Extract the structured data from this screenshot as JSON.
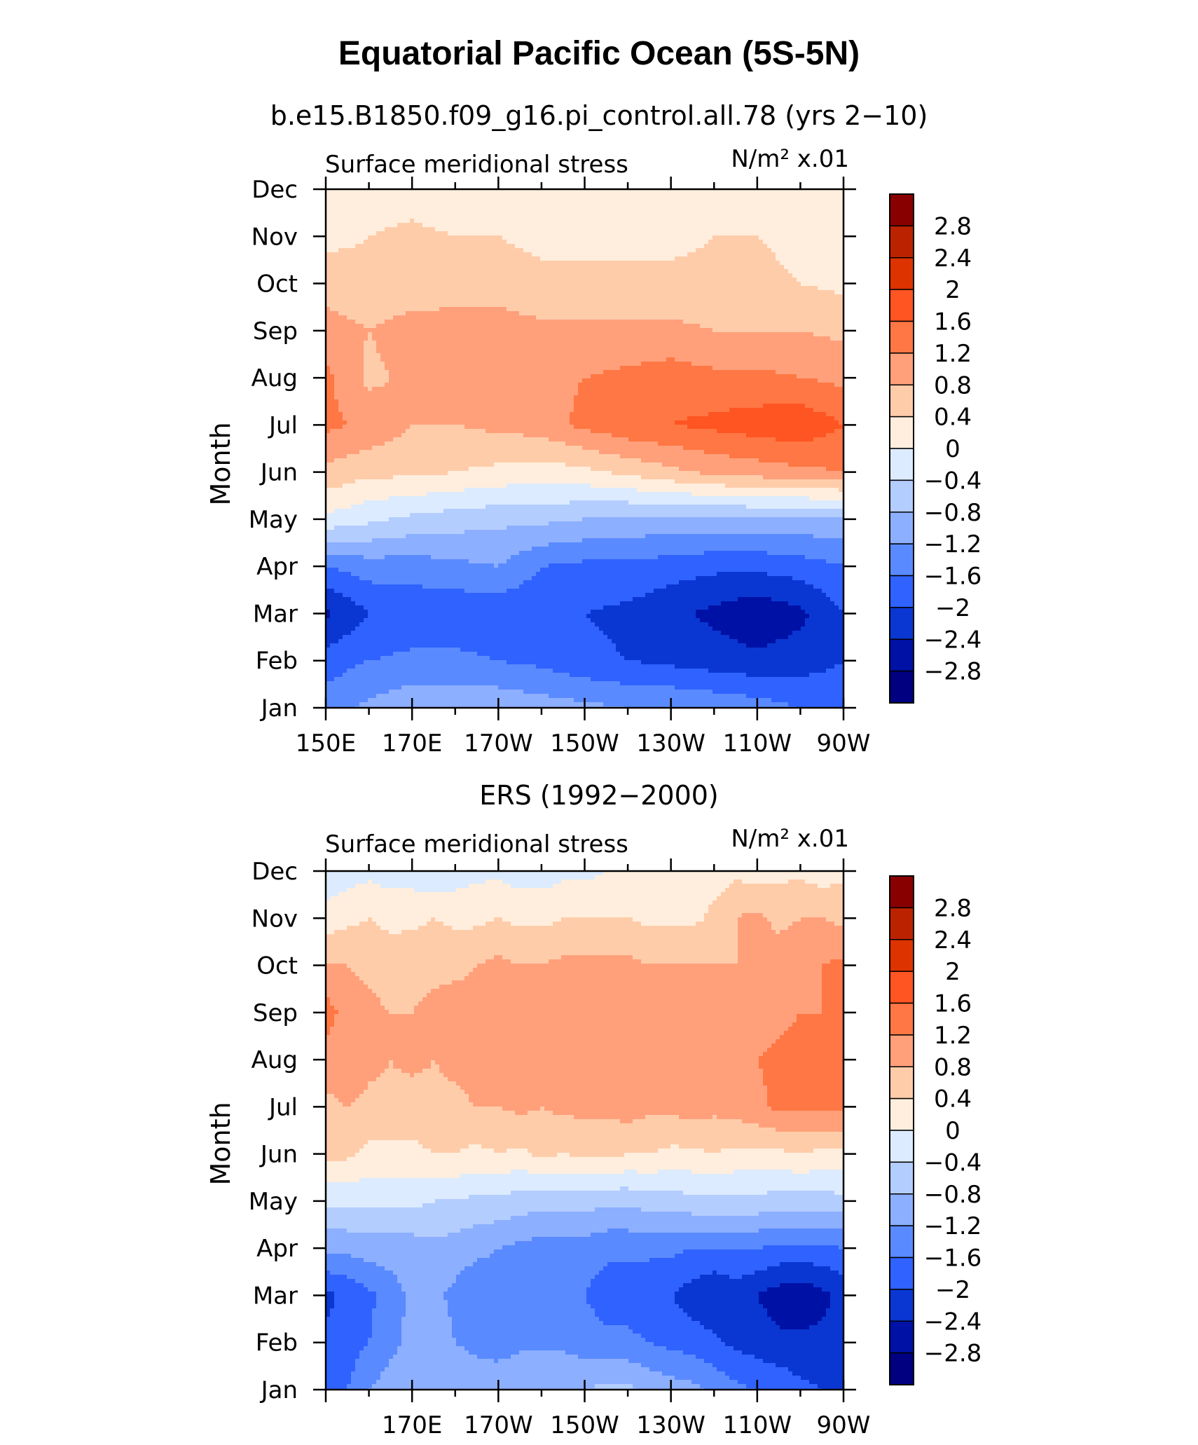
{
  "title": "Equatorial Pacific Ocean (5S-5N)",
  "colorbar": {
    "labels": [
      "2.8",
      "2.4",
      "2",
      "1.6",
      "1.2",
      "0.8",
      "0.4",
      "0",
      "−0.4",
      "−0.8",
      "−1.2",
      "−1.6",
      "−2",
      "−2.4",
      "−2.8"
    ],
    "colors": [
      "#880000",
      "#BB2200",
      "#DD3300",
      "#FF5522",
      "#FF7744",
      "#FFA07A",
      "#FFCCAA",
      "#FFEEDD",
      "#DCEBFF",
      "#B4CDFF",
      "#8CAFFF",
      "#5A8AFF",
      "#2F62FF",
      "#0A37D2",
      "#0011A6",
      "#000080"
    ]
  },
  "chart_data": [
    {
      "type": "heatmap",
      "title": "b.e15.B1850.f09_g16.pi_control.all.78 (yrs 2−10)",
      "left_label": "Surface meridional stress",
      "right_label": "N/m² x.01",
      "ylabel": "Month",
      "xlabel": "",
      "xlim": [
        150,
        270
      ],
      "x_ticks": [
        150,
        170,
        190,
        210,
        230,
        250,
        270
      ],
      "x_tick_labels": [
        "150E",
        "170E",
        "170W",
        "150W",
        "130W",
        "110W",
        "90W"
      ],
      "y_tick_labels": [
        "Jan",
        "Feb",
        "Mar",
        "Apr",
        "May",
        "Jun",
        "Jul",
        "Aug",
        "Sep",
        "Oct",
        "Nov",
        "Dec"
      ],
      "levels": [
        -2.8,
        -2.4,
        -2.0,
        -1.6,
        -1.2,
        -0.8,
        -0.4,
        0,
        0.4,
        0.8,
        1.2,
        1.6,
        2.0,
        2.4,
        2.8
      ],
      "x": [
        150,
        160,
        170,
        180,
        190,
        200,
        210,
        220,
        230,
        240,
        250,
        260,
        270
      ],
      "z": [
        [
          -1.4,
          -1.1,
          -0.9,
          -0.9,
          -0.9,
          -1.0,
          -1.1,
          -1.2,
          -1.2,
          -1.3,
          -1.4,
          -1.6,
          -1.8
        ],
        [
          -1.8,
          -1.6,
          -1.5,
          -1.5,
          -1.6,
          -1.7,
          -1.9,
          -2.0,
          -2.1,
          -2.2,
          -2.3,
          -2.2,
          -2.0
        ],
        [
          -2.5,
          -2.0,
          -1.9,
          -1.9,
          -1.9,
          -1.9,
          -2.0,
          -2.1,
          -2.3,
          -2.5,
          -2.7,
          -2.5,
          -2.0
        ],
        [
          -1.6,
          -1.4,
          -1.4,
          -1.3,
          -1.2,
          -1.6,
          -1.7,
          -1.7,
          -1.8,
          -1.9,
          -1.9,
          -1.8,
          -1.6
        ],
        [
          -0.1,
          -0.3,
          -0.5,
          -0.6,
          -0.7,
          -0.7,
          -0.8,
          -0.9,
          -0.9,
          -0.9,
          -0.9,
          -0.9,
          -0.9
        ],
        [
          0.7,
          0.5,
          0.5,
          0.4,
          0.3,
          0.2,
          0.3,
          0.5,
          0.7,
          0.9,
          1.0,
          1.1,
          1.2
        ],
        [
          1.3,
          1.1,
          0.8,
          0.8,
          0.9,
          1.0,
          1.3,
          1.5,
          1.6,
          1.7,
          1.8,
          1.9,
          1.6
        ],
        [
          1.3,
          0.7,
          0.9,
          1.0,
          1.0,
          1.1,
          1.2,
          1.3,
          1.4,
          1.3,
          1.3,
          1.2,
          1.1
        ],
        [
          1.0,
          0.8,
          1.0,
          1.0,
          1.0,
          0.9,
          0.9,
          0.9,
          0.9,
          0.8,
          0.8,
          0.8,
          0.7
        ],
        [
          0.6,
          0.5,
          0.5,
          0.6,
          0.6,
          0.5,
          0.5,
          0.5,
          0.5,
          0.5,
          0.5,
          0.4,
          0.3
        ],
        [
          0.3,
          0.4,
          0.5,
          0.4,
          0.4,
          0.3,
          0.3,
          0.3,
          0.3,
          0.4,
          0.4,
          0.3,
          0.2
        ],
        [
          0.0,
          0.2,
          0.2,
          0.1,
          0.1,
          0.1,
          0.1,
          0.1,
          0.1,
          0.1,
          0.1,
          0.0,
          0.0
        ]
      ]
    },
    {
      "type": "heatmap",
      "title": "ERS (1992−2000)",
      "left_label": "Surface meridional stress",
      "right_label": "N/m² x.01",
      "ylabel": "Month",
      "xlabel": "",
      "xlim": [
        150,
        270
      ],
      "x_ticks": [
        170,
        190,
        210,
        230,
        250,
        270
      ],
      "x_tick_labels": [
        "170E",
        "170W",
        "150W",
        "130W",
        "110W",
        "90W"
      ],
      "y_tick_labels": [
        "Jan",
        "Feb",
        "Mar",
        "Apr",
        "May",
        "Jun",
        "Jul",
        "Aug",
        "Sep",
        "Oct",
        "Nov",
        "Dec"
      ],
      "levels": [
        -2.8,
        -2.4,
        -2.0,
        -1.6,
        -1.2,
        -0.8,
        -0.4,
        0,
        0.4,
        0.8,
        1.2,
        1.6,
        2.0,
        2.4,
        2.8
      ],
      "x": [
        150,
        155,
        160,
        165,
        170,
        175,
        180,
        185,
        190,
        195,
        200,
        205,
        210,
        215,
        220,
        225,
        230,
        235,
        240,
        245,
        250,
        255,
        260,
        265,
        270
      ],
      "z": [
        [
          -1.7,
          -1.6,
          -1.2,
          -1.0,
          -1.0,
          -0.9,
          -0.8,
          -1.0,
          -0.9,
          -0.8,
          -0.8,
          -0.8,
          -0.8,
          -0.7,
          -0.7,
          -0.9,
          -1.0,
          -1.1,
          -1.3,
          -1.5,
          -1.6,
          -1.7,
          -1.9,
          -2.0,
          -2.0
        ],
        [
          -1.9,
          -1.8,
          -1.6,
          -1.3,
          -1.1,
          -1.0,
          -1.2,
          -1.3,
          -1.4,
          -1.3,
          -1.3,
          -1.3,
          -1.4,
          -1.5,
          -1.5,
          -1.6,
          -1.7,
          -1.8,
          -1.9,
          -2.1,
          -2.2,
          -2.3,
          -2.3,
          -2.3,
          -2.2
        ],
        [
          -2.1,
          -1.9,
          -1.7,
          -1.4,
          -1.1,
          -1.1,
          -1.3,
          -1.5,
          -1.4,
          -1.3,
          -1.3,
          -1.4,
          -1.6,
          -1.8,
          -1.8,
          -1.9,
          -2.0,
          -2.2,
          -2.4,
          -2.2,
          -2.4,
          -2.6,
          -2.7,
          -2.5,
          -2.3
        ],
        [
          -1.1,
          -1.1,
          -1.0,
          -1.0,
          -1.0,
          -0.9,
          -1.0,
          -1.1,
          -1.2,
          -1.3,
          -1.4,
          -1.4,
          -1.4,
          -1.5,
          -1.5,
          -1.5,
          -1.5,
          -1.6,
          -1.6,
          -1.6,
          -1.6,
          -1.7,
          -1.7,
          -1.7,
          -1.6
        ],
        [
          -0.3,
          -0.3,
          -0.3,
          -0.3,
          -0.3,
          -0.4,
          -0.4,
          -0.5,
          -0.5,
          -0.6,
          -0.6,
          -0.6,
          -0.6,
          -0.7,
          -0.7,
          -0.6,
          -0.6,
          -0.5,
          -0.5,
          -0.5,
          -0.5,
          -0.6,
          -0.6,
          -0.6,
          -0.5
        ],
        [
          0.5,
          0.5,
          0.3,
          0.3,
          0.3,
          0.4,
          0.4,
          0.3,
          0.4,
          0.3,
          0.5,
          0.4,
          0.5,
          0.5,
          0.4,
          0.4,
          0.3,
          0.3,
          0.4,
          0.3,
          0.3,
          0.3,
          0.4,
          0.3,
          0.3
        ],
        [
          0.7,
          0.8,
          0.7,
          0.7,
          0.6,
          0.7,
          0.7,
          0.8,
          0.8,
          0.9,
          0.8,
          0.9,
          0.9,
          0.9,
          1.0,
          0.9,
          0.9,
          1.0,
          0.9,
          1.0,
          1.1,
          1.3,
          1.3,
          1.3,
          1.3
        ],
        [
          1.0,
          1.1,
          0.9,
          0.8,
          0.9,
          0.8,
          0.9,
          1.0,
          1.0,
          1.1,
          1.0,
          1.0,
          1.1,
          1.1,
          1.1,
          1.1,
          1.0,
          1.1,
          1.1,
          1.1,
          1.2,
          1.3,
          1.3,
          1.4,
          1.3
        ],
        [
          1.4,
          1.0,
          0.9,
          0.8,
          0.8,
          0.9,
          1.0,
          0.9,
          1.0,
          1.1,
          1.0,
          1.0,
          1.1,
          1.1,
          1.1,
          1.0,
          1.0,
          1.0,
          0.9,
          0.9,
          1.0,
          1.1,
          1.2,
          1.2,
          1.3
        ],
        [
          0.8,
          0.8,
          0.7,
          0.6,
          0.7,
          0.7,
          0.7,
          0.8,
          0.9,
          0.8,
          0.8,
          0.9,
          0.9,
          0.9,
          0.9,
          0.8,
          0.8,
          0.8,
          0.8,
          0.8,
          0.8,
          1.0,
          1.1,
          1.2,
          1.3
        ],
        [
          0.2,
          0.3,
          0.4,
          0.3,
          0.3,
          0.4,
          0.3,
          0.3,
          0.4,
          0.3,
          0.3,
          0.4,
          0.4,
          0.4,
          0.4,
          0.3,
          0.3,
          0.3,
          0.5,
          0.8,
          0.9,
          0.7,
          0.8,
          0.8,
          0.7
        ],
        [
          -0.3,
          -0.2,
          -0.1,
          -0.2,
          -0.2,
          -0.3,
          -0.2,
          -0.1,
          -0.1,
          -0.2,
          -0.2,
          -0.1,
          -0.1,
          0.0,
          0.1,
          0.1,
          0.1,
          0.2,
          0.2,
          0.3,
          0.2,
          0.3,
          0.3,
          0.2,
          0.3
        ]
      ]
    }
  ]
}
